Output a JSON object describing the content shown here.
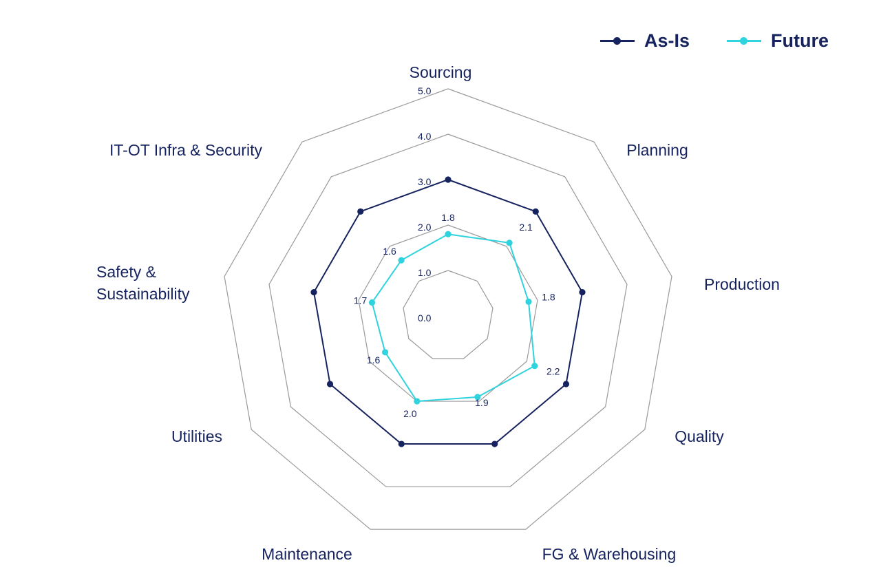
{
  "chart_data": {
    "type": "radar",
    "axes": [
      "Sourcing",
      "Planning",
      "Production",
      "Quality",
      "FG & Warehousing",
      "Maintenance",
      "Utilities",
      "Safety & Sustainability",
      "IT-OT Infra & Security"
    ],
    "rlim": [
      0,
      5
    ],
    "ticks": [
      "0.0",
      "1.0",
      "2.0",
      "3.0",
      "4.0",
      "5.0"
    ],
    "legend_position": "top-right",
    "series": [
      {
        "name": "As-Is",
        "color": "#16235e",
        "values": [
          3.0,
          3.0,
          3.0,
          3.0,
          3.0,
          3.0,
          3.0,
          3.0,
          3.0
        ]
      },
      {
        "name": "Future",
        "color": "#2fd3de",
        "values": [
          1.8,
          2.1,
          1.8,
          2.2,
          1.9,
          2.0,
          1.6,
          1.7,
          1.6
        ]
      }
    ],
    "data_labels": [
      "1.8",
      "2.1",
      "1.8",
      "2.2",
      "1.9",
      "2.0",
      "1.6",
      "1.7",
      "1.6"
    ]
  },
  "legend": {
    "as_is_label": "As-Is",
    "future_label": "Future",
    "as_is_color": "#16235e",
    "future_color": "#2fd3de"
  }
}
